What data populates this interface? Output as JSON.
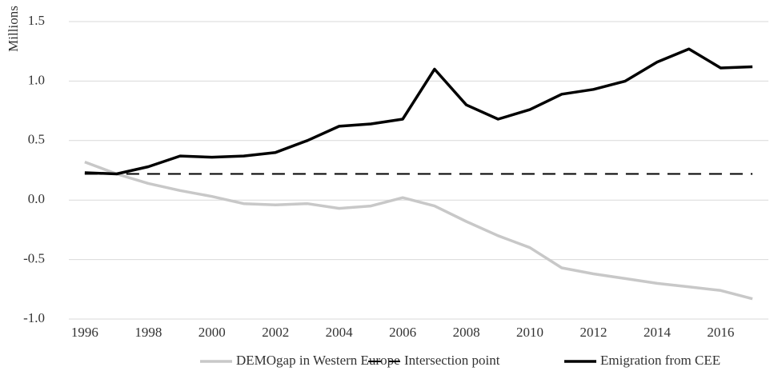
{
  "chart_data": {
    "type": "line",
    "y_label": "Millions",
    "categories": [
      "1996",
      null,
      "1998",
      null,
      "2000",
      null,
      "2002",
      null,
      "2004",
      null,
      "2006",
      null,
      "2008",
      null,
      "2010",
      null,
      "2012",
      null,
      "2014",
      null,
      "2016",
      null
    ],
    "ylim": [
      -1.0,
      1.5
    ],
    "yticks": [
      {
        "value": -1.0,
        "label": "-1.0"
      },
      -0.5,
      {
        "value": 0.0,
        "label": "0.0"
      },
      0.5,
      {
        "value": 1.0,
        "label": "1.0"
      },
      1.5
    ],
    "grid": true,
    "legend": "bottom",
    "series": [
      {
        "name": "DEMOgap in Western Europe",
        "color": "#c8c8c8",
        "dash": false,
        "values": [
          0.32,
          0.22,
          0.14,
          0.08,
          0.03,
          -0.03,
          -0.04,
          -0.03,
          -0.07,
          -0.05,
          0.02,
          -0.05,
          -0.18,
          -0.3,
          -0.4,
          -0.57,
          -0.62,
          -0.66,
          -0.7,
          -0.73,
          -0.76,
          -0.83
        ]
      },
      {
        "name": "Intersection point",
        "color": "#000000",
        "dash": true,
        "values": [
          0.22,
          0.22,
          0.22,
          0.22,
          0.22,
          0.22,
          0.22,
          0.22,
          0.22,
          0.22,
          0.22,
          0.22,
          0.22,
          0.22,
          0.22,
          0.22,
          0.22,
          0.22,
          0.22,
          0.22,
          0.22,
          0.22
        ]
      },
      {
        "name": "Emigration from CEE",
        "color": "#000000",
        "dash": false,
        "values": [
          0.23,
          0.22,
          0.28,
          0.37,
          0.36,
          0.37,
          0.4,
          0.5,
          0.62,
          0.64,
          0.68,
          1.1,
          0.8,
          0.68,
          0.76,
          0.89,
          0.93,
          1.0,
          1.16,
          1.27,
          1.11,
          1.12
        ]
      }
    ]
  }
}
